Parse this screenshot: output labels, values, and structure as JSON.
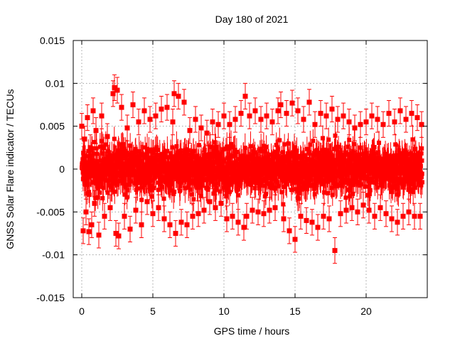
{
  "chart_data": {
    "type": "scatter",
    "title": "Day 180 of 2021",
    "xlabel": "GPS time / hours",
    "ylabel": "GNSS Solar Flare indicator / TECUs",
    "xlim": [
      -0.6,
      24.3
    ],
    "ylim": [
      -0.015,
      0.015
    ],
    "x_ticks": [
      0,
      5,
      10,
      15,
      20
    ],
    "x_tick_labels": [
      "0",
      "5",
      "10",
      "15",
      "20"
    ],
    "y_ticks": [
      -0.015,
      -0.01,
      -0.005,
      0,
      0.005,
      0.01,
      0.015
    ],
    "y_tick_labels": [
      "-0.015",
      "-0.01",
      "-0.005",
      "0",
      "0.005",
      "0.01",
      "0.015"
    ],
    "grid": true,
    "legend": "none",
    "colors": {
      "series": "#ff0000",
      "grid": "#a0a0a0",
      "axis": "#000000"
    },
    "series": [
      {
        "marker": "square",
        "error_bars": "vertical",
        "error_bar_halfwidth_typical": 0.0015,
        "x": [
          0.0,
          0.1,
          0.2,
          0.3,
          0.4,
          0.5,
          0.6,
          0.7,
          0.8,
          0.9,
          1.0,
          1.2,
          1.4,
          1.6,
          1.8,
          2.0,
          2.2,
          2.3,
          2.4,
          2.5,
          2.6,
          2.8,
          3.0,
          3.2,
          3.4,
          3.6,
          3.8,
          4.0,
          4.2,
          4.4,
          4.6,
          4.8,
          5.0,
          5.2,
          5.4,
          5.6,
          5.8,
          6.0,
          6.2,
          6.4,
          6.5,
          6.6,
          6.8,
          7.0,
          7.2,
          7.4,
          7.6,
          7.8,
          8.0,
          8.2,
          8.4,
          8.6,
          8.8,
          9.0,
          9.2,
          9.4,
          9.6,
          9.8,
          10.0,
          10.2,
          10.4,
          10.6,
          10.8,
          11.0,
          11.2,
          11.4,
          11.5,
          11.6,
          11.8,
          12.0,
          12.2,
          12.4,
          12.6,
          12.8,
          13.0,
          13.2,
          13.4,
          13.6,
          13.8,
          14.0,
          14.2,
          14.4,
          14.6,
          14.8,
          15.0,
          15.2,
          15.4,
          15.6,
          15.8,
          16.0,
          16.2,
          16.4,
          16.6,
          16.8,
          17.0,
          17.2,
          17.4,
          17.6,
          17.8,
          18.0,
          18.2,
          18.4,
          18.6,
          18.8,
          19.0,
          19.2,
          19.4,
          19.6,
          19.8,
          20.0,
          20.2,
          20.4,
          20.6,
          20.8,
          21.0,
          21.2,
          21.4,
          21.6,
          21.8,
          22.0,
          22.2,
          22.4,
          22.6,
          22.8,
          23.0,
          23.2,
          23.4,
          23.6,
          23.8,
          23.9
        ],
        "y": [
          0.005,
          -0.0072,
          0.0035,
          -0.005,
          0.006,
          -0.0073,
          0.0025,
          -0.0065,
          0.0068,
          -0.004,
          0.0045,
          -0.0077,
          0.0062,
          -0.0055,
          0.0038,
          -0.0045,
          0.0088,
          0.0095,
          -0.0075,
          0.0092,
          -0.0078,
          0.0072,
          -0.0055,
          0.0048,
          -0.007,
          0.0075,
          -0.0048,
          0.0055,
          -0.0065,
          0.0068,
          -0.0038,
          0.0058,
          -0.0052,
          0.0062,
          -0.0045,
          0.007,
          -0.0058,
          0.0072,
          -0.0065,
          0.0055,
          0.0088,
          -0.0075,
          0.0085,
          -0.0062,
          0.0078,
          -0.0065,
          0.0045,
          -0.0055,
          0.0058,
          -0.0052,
          0.0048,
          -0.0048,
          0.0042,
          -0.0038,
          0.0055,
          -0.0045,
          0.0052,
          -0.004,
          0.0062,
          -0.0058,
          0.0052,
          -0.0055,
          0.0058,
          -0.0062,
          0.0065,
          -0.0068,
          0.0085,
          -0.0055,
          0.0062,
          -0.0048,
          0.0068,
          -0.005,
          0.0058,
          -0.0052,
          0.0062,
          -0.0048,
          0.0055,
          -0.0045,
          0.0068,
          0.0075,
          -0.0058,
          0.0065,
          -0.0072,
          0.0077,
          -0.0082,
          0.0068,
          -0.0055,
          0.0058,
          -0.006,
          0.0078,
          -0.0062,
          0.0052,
          -0.0068,
          0.0065,
          -0.0055,
          0.0062,
          -0.0058,
          0.007,
          -0.0095,
          0.0058,
          -0.0052,
          0.0062,
          -0.0048,
          0.0055,
          -0.0045,
          0.0048,
          -0.005,
          0.0052,
          -0.0042,
          0.0055,
          -0.0048,
          0.0062,
          -0.0055,
          0.0058,
          -0.0045,
          0.0052,
          -0.0052,
          0.0065,
          -0.0058,
          0.0055,
          -0.0062,
          0.0068,
          -0.0055,
          0.0058,
          -0.005,
          0.0065,
          -0.0055,
          0.006,
          -0.0055,
          0.0052
        ]
      }
    ]
  }
}
